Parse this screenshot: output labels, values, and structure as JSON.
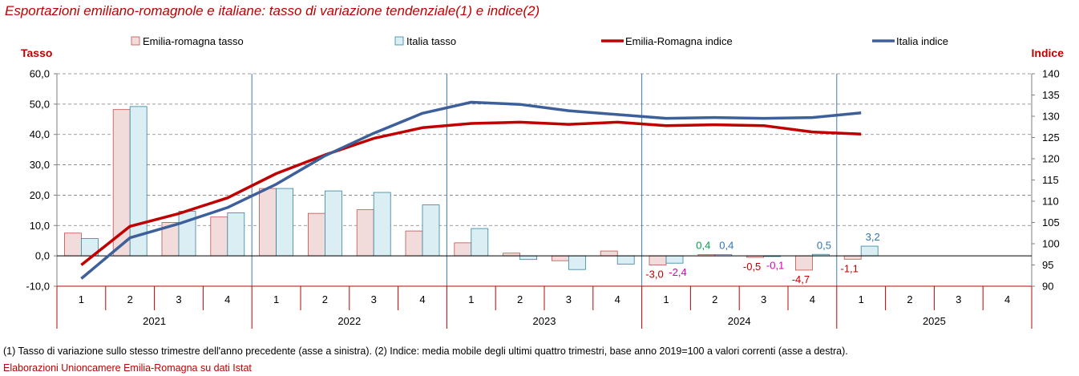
{
  "title": "Esportazioni emiliano-romagnole e italiane: tasso di variazione tendenziale(1) e indice(2)",
  "note": "(1) Tasso di variazione sullo stesso trimestre dell'anno precedente (asse a sinistra). (2) Indice: media mobile degli ultimi quattro trimestri, base anno 2019=100 a valori correnti (asse a destra).",
  "source": "Elaborazioni Unioncamere Emilia-Romagna su dati Istat",
  "colors": {
    "er_bar_fill": "#f2dcdb",
    "er_bar_stroke": "#c0504d",
    "it_bar_fill": "#dbeef4",
    "it_bar_stroke": "#31859c",
    "er_line": "#c00000",
    "it_line": "#3d5f9a",
    "label_red": "#c00000",
    "label_green": "#00a050",
    "label_blue": "#2f75b5",
    "label_magenta": "#e000b4",
    "title": "#c00000"
  },
  "chart_data": {
    "type": "bar+line",
    "title": "Esportazioni emiliano-romagnole e italiane: tasso di variazione tendenziale(1) e indice(2)",
    "y_left_label": "Tasso",
    "y_right_label": "Indice",
    "y_left_range": [
      -10,
      60
    ],
    "y_left_ticks": [
      "60,0",
      "50,0",
      "40,0",
      "30,0",
      "20,0",
      "10,0",
      "0,0",
      "-10,0"
    ],
    "y_left_tick_values": [
      60,
      50,
      40,
      30,
      20,
      10,
      0,
      -10
    ],
    "y_right_range": [
      90,
      140
    ],
    "y_right_ticks": [
      "140",
      "135",
      "130",
      "125",
      "120",
      "115",
      "110",
      "105",
      "100",
      "95",
      "90"
    ],
    "y_right_tick_values": [
      140,
      135,
      130,
      125,
      120,
      115,
      110,
      105,
      100,
      95,
      90
    ],
    "years": [
      "2021",
      "2022",
      "2023",
      "2024",
      "2025"
    ],
    "quarters": [
      "1",
      "2",
      "3",
      "4",
      "1",
      "2",
      "3",
      "4",
      "1",
      "2",
      "3",
      "4",
      "1",
      "2",
      "3",
      "4",
      "1",
      "2",
      "3",
      "4"
    ],
    "grid": "horizontal dashed",
    "legend_position": "top",
    "series": [
      {
        "name": "Emilia-romagna tasso",
        "type": "bar",
        "axis": "left",
        "values": [
          7.5,
          48.2,
          11.0,
          12.8,
          22.2,
          14.0,
          15.2,
          8.2,
          4.3,
          0.9,
          -1.6,
          1.6,
          -3.0,
          0.4,
          -0.5,
          -4.7,
          -1.1,
          null,
          null,
          null
        ]
      },
      {
        "name": "Italia tasso",
        "type": "bar",
        "axis": "left",
        "values": [
          5.7,
          49.2,
          14.7,
          14.2,
          22.2,
          21.4,
          20.9,
          16.8,
          9.0,
          -1.2,
          -4.5,
          -2.7,
          -2.4,
          0.4,
          -0.1,
          0.5,
          3.2,
          null,
          null,
          null
        ]
      },
      {
        "name": "Emilia-Romagna indice",
        "type": "line",
        "axis": "right",
        "values": [
          95.0,
          104.1,
          107.1,
          110.8,
          116.5,
          120.9,
          124.8,
          127.3,
          128.3,
          128.6,
          128.1,
          128.6,
          127.8,
          128.0,
          127.8,
          126.3,
          125.8,
          null,
          null,
          null
        ]
      },
      {
        "name": "Italia indice",
        "type": "line",
        "axis": "right",
        "values": [
          91.8,
          101.4,
          104.7,
          108.5,
          114.0,
          120.7,
          126.0,
          130.7,
          133.3,
          132.8,
          131.3,
          130.4,
          129.5,
          129.7,
          129.5,
          129.7,
          130.8,
          null,
          null,
          null
        ]
      }
    ],
    "data_labels": [
      {
        "text": "-3,0",
        "series": 0,
        "index": 12,
        "color": "label_red"
      },
      {
        "text": "-2,4",
        "series": 1,
        "index": 12,
        "color": "label_magenta"
      },
      {
        "text": "0,4",
        "series": 0,
        "index": 13,
        "color": "label_green"
      },
      {
        "text": "0,4",
        "series": 1,
        "index": 13,
        "color": "label_blue"
      },
      {
        "text": "-0,5",
        "series": 0,
        "index": 14,
        "color": "label_red"
      },
      {
        "text": "-0,1",
        "series": 1,
        "index": 14,
        "color": "label_magenta"
      },
      {
        "text": "-4,7",
        "series": 0,
        "index": 15,
        "color": "label_red"
      },
      {
        "text": "0,5",
        "series": 1,
        "index": 15,
        "color": "label_blue"
      },
      {
        "text": "-1,1",
        "series": 0,
        "index": 16,
        "color": "label_red"
      },
      {
        "text": "3,2",
        "series": 1,
        "index": 16,
        "color": "label_blue"
      }
    ]
  }
}
